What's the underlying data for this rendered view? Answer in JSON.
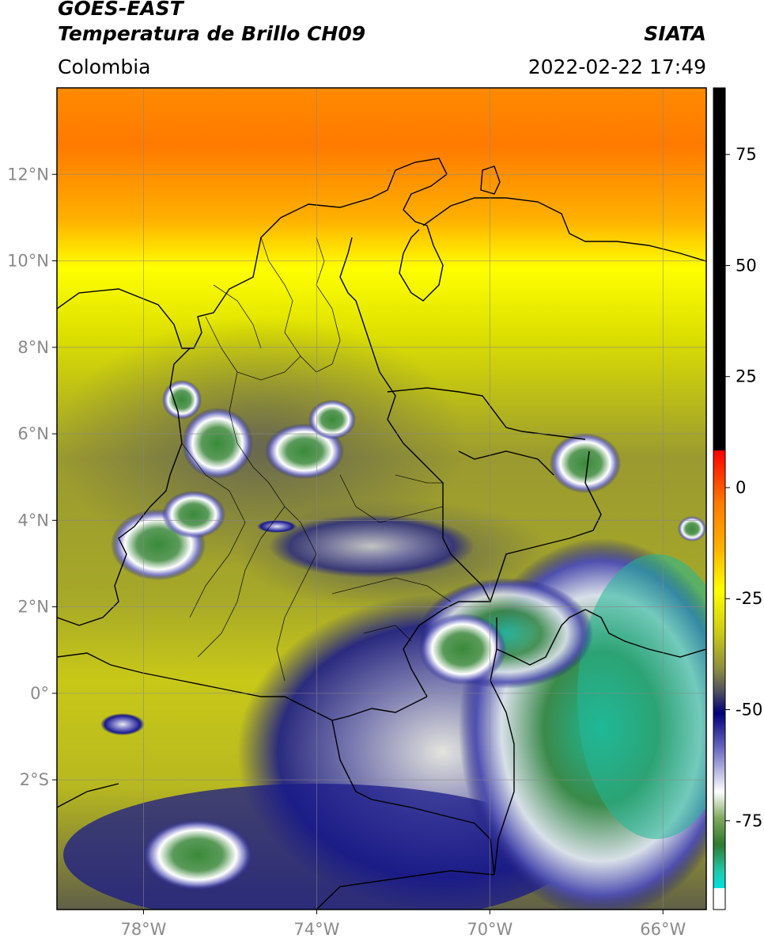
{
  "header": {
    "satellite": "GOES-EAST",
    "product": "Temperatura de Brillo CH09",
    "region": "Colombia",
    "source": "SIATA",
    "datetime": "2022-02-22 17:49"
  },
  "map": {
    "lon_range": [
      -80,
      -65
    ],
    "lat_range": [
      -5,
      14
    ],
    "lat_ticks": [
      {
        "value": 12,
        "label": "12°N"
      },
      {
        "value": 10,
        "label": "10°N"
      },
      {
        "value": 8,
        "label": "8°N"
      },
      {
        "value": 6,
        "label": "6°N"
      },
      {
        "value": 4,
        "label": "4°N"
      },
      {
        "value": 2,
        "label": "2°N"
      },
      {
        "value": 0,
        "label": "0°"
      },
      {
        "value": -2,
        "label": "2°S"
      }
    ],
    "lon_ticks": [
      {
        "value": -78,
        "label": "78°W"
      },
      {
        "value": -74,
        "label": "74°W"
      },
      {
        "value": -70,
        "label": "70°W"
      },
      {
        "value": -66,
        "label": "66°W"
      }
    ],
    "grid": true
  },
  "colorbar": {
    "range": [
      -95,
      90
    ],
    "ticks": [
      {
        "value": 75,
        "label": "75"
      },
      {
        "value": 50,
        "label": "50"
      },
      {
        "value": 25,
        "label": "25"
      },
      {
        "value": 0,
        "label": "0"
      },
      {
        "value": -25,
        "label": "-25"
      },
      {
        "value": -50,
        "label": "-50"
      },
      {
        "value": -75,
        "label": "-75"
      }
    ]
  }
}
